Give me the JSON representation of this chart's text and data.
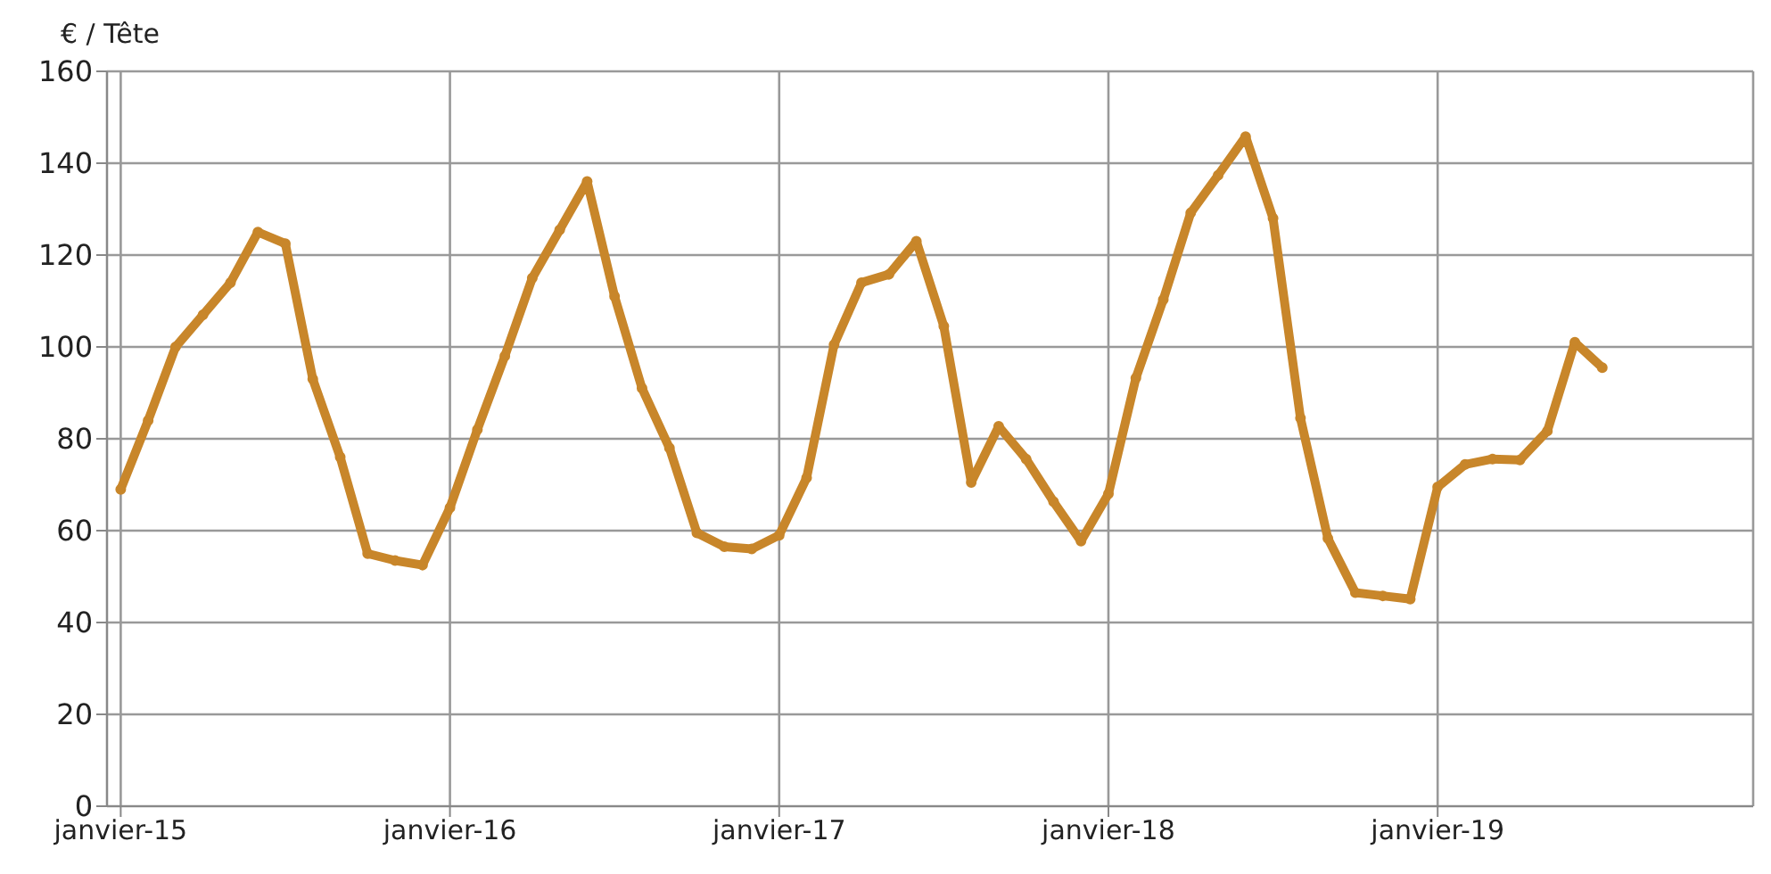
{
  "chart_data": {
    "type": "line",
    "ylabel": "€ / Tête",
    "categories": [
      "janvier-15",
      null,
      null,
      null,
      null,
      null,
      null,
      null,
      null,
      null,
      null,
      null,
      "janvier-16",
      null,
      null,
      null,
      null,
      null,
      null,
      null,
      null,
      null,
      null,
      null,
      "janvier-17",
      null,
      null,
      null,
      null,
      null,
      null,
      null,
      null,
      null,
      null,
      null,
      "janvier-18",
      null,
      null,
      null,
      null,
      null,
      null,
      null,
      null,
      null,
      null,
      null,
      "janvier-19",
      null,
      null,
      null,
      null,
      null,
      null,
      null,
      null,
      null,
      null,
      null
    ],
    "series": [
      {
        "color": "#c8862a",
        "values": [
          69,
          84,
          100,
          107,
          114,
          125,
          122.5,
          93,
          76,
          55,
          53.5,
          52.5,
          65,
          82,
          98,
          115,
          125.5,
          136,
          111,
          91,
          78,
          59.5,
          56.5,
          56,
          59,
          71.5,
          100.5,
          114,
          115.8,
          123,
          104.5,
          70.5,
          82.7,
          75.6,
          66.3,
          57.7,
          68,
          93.2,
          110.3,
          129.2,
          137.4,
          145.8,
          128,
          84.5,
          58.3,
          46.5,
          45.8,
          45.1,
          69.5,
          74.4,
          75.6,
          75.4,
          81.7,
          101,
          95.5,
          null,
          null,
          null,
          null,
          null
        ]
      }
    ],
    "ylim": [
      0,
      160
    ],
    "yticks": [
      0,
      20,
      40,
      60,
      80,
      100,
      120,
      140,
      160
    ],
    "grid": true,
    "marker": "circle"
  }
}
